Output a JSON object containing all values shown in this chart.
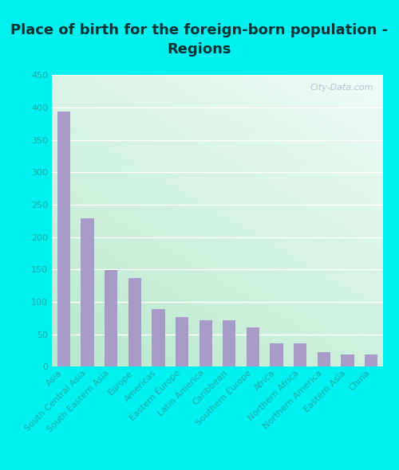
{
  "title": "Place of birth for the foreign-born population -\nRegions",
  "categories": [
    "Asia",
    "South Central Asia",
    "South Eastern Asia",
    "Europe",
    "Americas",
    "Eastern Europe",
    "Latin America",
    "Caribbean",
    "Southern Europe",
    "Africa",
    "Northern Africa",
    "Northern America",
    "Eastern Asia",
    "China"
  ],
  "values": [
    394,
    229,
    149,
    137,
    89,
    77,
    72,
    71,
    60,
    36,
    36,
    22,
    19,
    19
  ],
  "bar_color": "#a89bc8",
  "ylim": [
    0,
    450
  ],
  "yticks": [
    0,
    50,
    100,
    150,
    200,
    250,
    300,
    350,
    400,
    450
  ],
  "bg_outer": "#00f0f0",
  "bg_grad_topleft": "#d4ede0",
  "bg_grad_topright": "#eef8f8",
  "bg_grad_bottom": "#c8e8d0",
  "watermark_text": "City-Data.com",
  "title_fontsize": 13,
  "tick_fontsize": 8,
  "ytick_color": "#22aaaa",
  "title_color": "#003333"
}
